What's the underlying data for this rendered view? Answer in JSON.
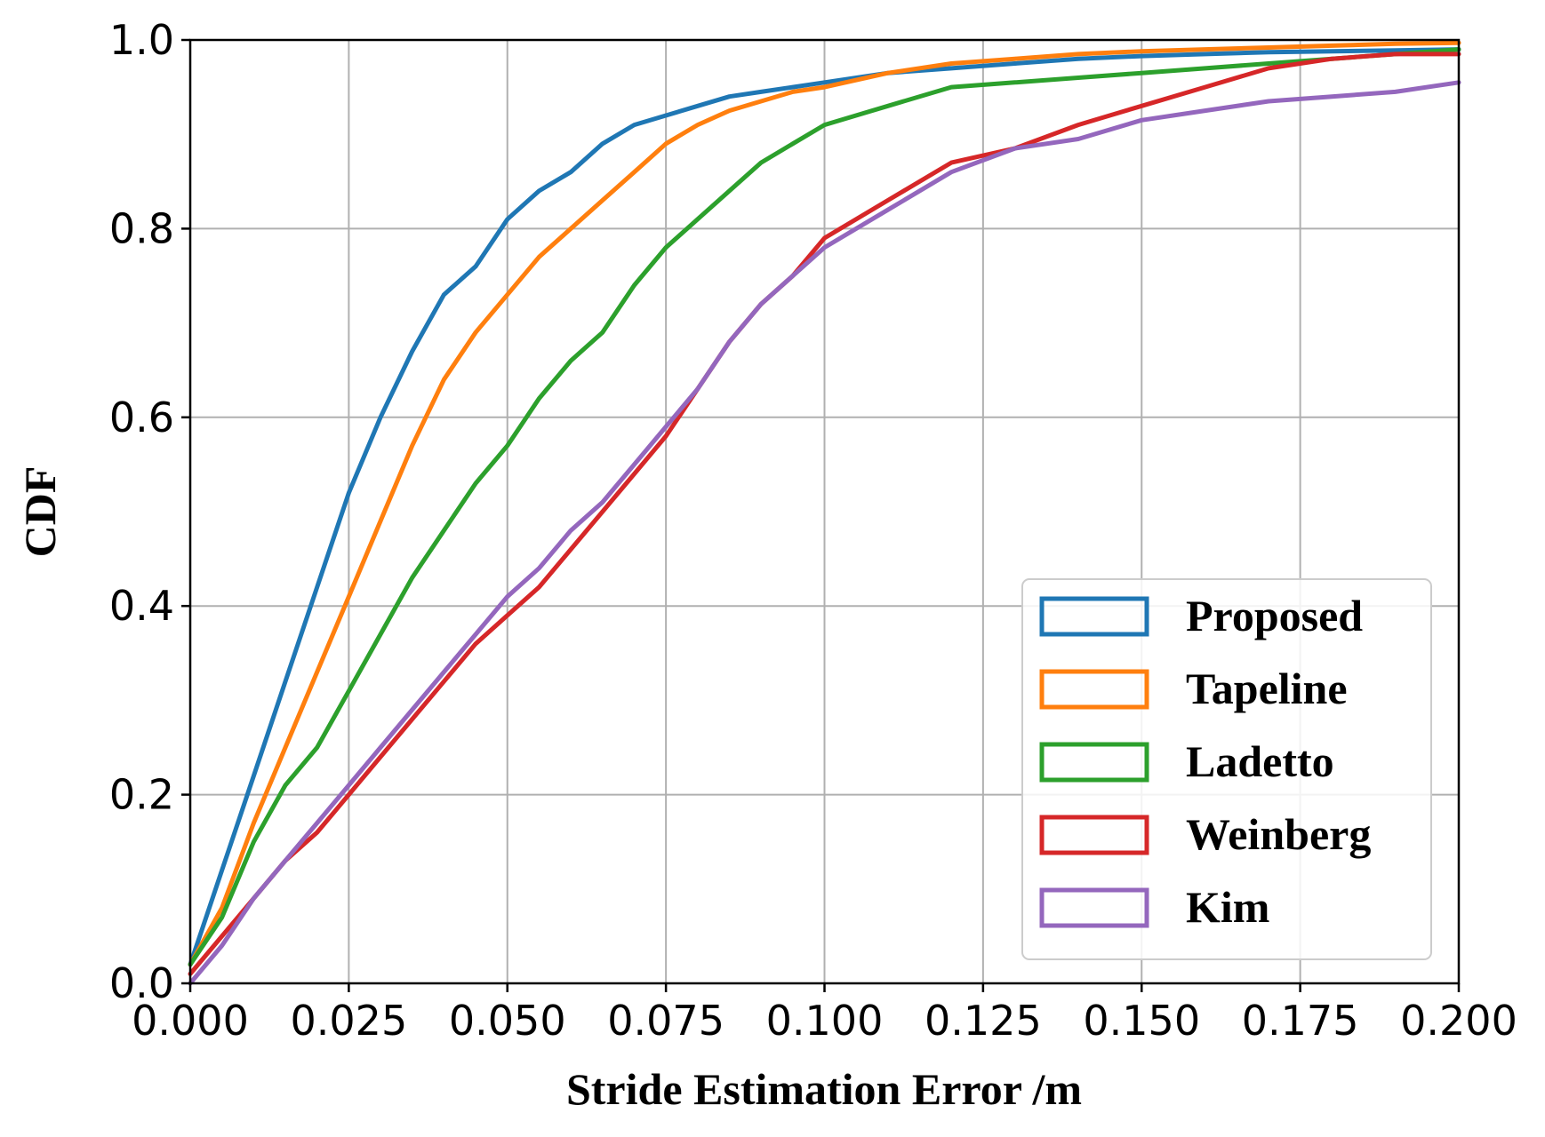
{
  "chart_data": {
    "type": "line",
    "title": "",
    "xlabel": "Stride Estimation Error /m",
    "ylabel": "CDF",
    "xlim": [
      0.0,
      0.2
    ],
    "ylim": [
      0.0,
      1.0
    ],
    "grid": true,
    "legend_position": "bottom-right",
    "x_ticks": [
      "0.000",
      "0.025",
      "0.050",
      "0.075",
      "0.100",
      "0.125",
      "0.150",
      "0.175",
      "0.200"
    ],
    "y_ticks": [
      "0.0",
      "0.2",
      "0.4",
      "0.6",
      "0.8",
      "1.0"
    ],
    "x": [
      0.0,
      0.005,
      0.01,
      0.015,
      0.02,
      0.025,
      0.03,
      0.035,
      0.04,
      0.045,
      0.05,
      0.055,
      0.06,
      0.065,
      0.07,
      0.075,
      0.08,
      0.085,
      0.09,
      0.095,
      0.1,
      0.11,
      0.12,
      0.13,
      0.14,
      0.15,
      0.16,
      0.17,
      0.18,
      0.19,
      0.2
    ],
    "series": [
      {
        "name": "Proposed",
        "color": "#1f77b4",
        "values": [
          0.02,
          0.12,
          0.22,
          0.32,
          0.42,
          0.52,
          0.6,
          0.67,
          0.73,
          0.76,
          0.81,
          0.84,
          0.86,
          0.89,
          0.91,
          0.92,
          0.93,
          0.94,
          0.945,
          0.95,
          0.955,
          0.965,
          0.97,
          0.975,
          0.98,
          0.983,
          0.985,
          0.987,
          0.988,
          0.989,
          0.99
        ]
      },
      {
        "name": "Tapeline",
        "color": "#ff7f0e",
        "values": [
          0.02,
          0.08,
          0.17,
          0.25,
          0.33,
          0.41,
          0.49,
          0.57,
          0.64,
          0.69,
          0.73,
          0.77,
          0.8,
          0.83,
          0.86,
          0.89,
          0.91,
          0.925,
          0.935,
          0.945,
          0.95,
          0.965,
          0.975,
          0.98,
          0.985,
          0.988,
          0.99,
          0.992,
          0.994,
          0.996,
          0.997
        ]
      },
      {
        "name": "Ladetto",
        "color": "#2ca02c",
        "values": [
          0.02,
          0.07,
          0.15,
          0.21,
          0.25,
          0.31,
          0.37,
          0.43,
          0.48,
          0.53,
          0.57,
          0.62,
          0.66,
          0.69,
          0.74,
          0.78,
          0.81,
          0.84,
          0.87,
          0.89,
          0.91,
          0.93,
          0.95,
          0.955,
          0.96,
          0.965,
          0.97,
          0.975,
          0.98,
          0.985,
          0.99
        ]
      },
      {
        "name": "Weinberg",
        "color": "#d62728",
        "values": [
          0.01,
          0.05,
          0.09,
          0.13,
          0.16,
          0.2,
          0.24,
          0.28,
          0.32,
          0.36,
          0.39,
          0.42,
          0.46,
          0.5,
          0.54,
          0.58,
          0.63,
          0.68,
          0.72,
          0.75,
          0.79,
          0.83,
          0.87,
          0.885,
          0.91,
          0.93,
          0.95,
          0.97,
          0.98,
          0.985,
          0.985
        ]
      },
      {
        "name": "Kim",
        "color": "#9467bd",
        "values": [
          0.0,
          0.04,
          0.09,
          0.13,
          0.17,
          0.21,
          0.25,
          0.29,
          0.33,
          0.37,
          0.41,
          0.44,
          0.48,
          0.51,
          0.55,
          0.59,
          0.63,
          0.68,
          0.72,
          0.75,
          0.78,
          0.82,
          0.86,
          0.885,
          0.895,
          0.915,
          0.925,
          0.935,
          0.94,
          0.945,
          0.955
        ]
      }
    ]
  }
}
